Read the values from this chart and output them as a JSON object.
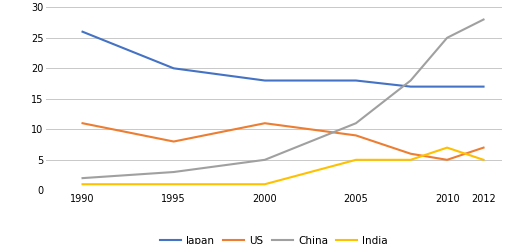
{
  "years": [
    1990,
    1995,
    2000,
    2005,
    2008,
    2010,
    2012
  ],
  "japan": [
    26,
    20,
    18,
    18,
    17,
    17,
    17
  ],
  "us": [
    11,
    8,
    11,
    9,
    6,
    5,
    7
  ],
  "china": [
    2,
    3,
    5,
    11,
    18,
    25,
    28
  ],
  "india": [
    1,
    1,
    1,
    5,
    5,
    7,
    5
  ],
  "japan_color": "#4472C4",
  "us_color": "#ED7D31",
  "china_color": "#A0A0A0",
  "india_color": "#FFC000",
  "ylim": [
    0,
    30
  ],
  "yticks": [
    0,
    5,
    10,
    15,
    20,
    25,
    30
  ],
  "xticks": [
    1990,
    1995,
    2000,
    2005,
    2010,
    2012
  ],
  "legend_labels": [
    "Japan",
    "US",
    "China",
    "India"
  ],
  "bg_color": "#FFFFFF",
  "grid_color": "#C8C8C8"
}
